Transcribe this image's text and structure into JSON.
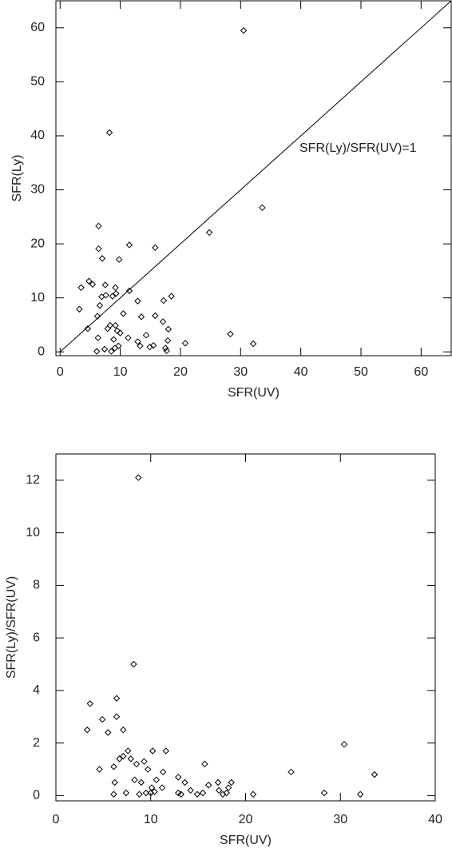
{
  "chart_data": [
    {
      "type": "scatter",
      "xlabel": "SFR(UV)",
      "ylabel": "SFR(Ly)",
      "annotation": "SFR(Ly)/SFR(UV)=1",
      "reference_line": true,
      "xlim": [
        -0.7,
        65
      ],
      "ylim": [
        -0.7,
        65
      ],
      "xticks": [
        0,
        10,
        20,
        30,
        40,
        50,
        60
      ],
      "yticks": [
        0,
        10,
        20,
        30,
        40,
        50,
        60
      ],
      "color": "#000000",
      "x": [
        30.5,
        8.2,
        33.6,
        24.8,
        6.4,
        11.5,
        15.8,
        6.4,
        7,
        9.8,
        4.8,
        3.5,
        5.4,
        7.5,
        9.2,
        11.5,
        6.9,
        7.6,
        8.7,
        9.3,
        3.2,
        6.6,
        12.9,
        17.2,
        18.5,
        6.2,
        8.3,
        7.9,
        4.6,
        9.2,
        10.5,
        13.5,
        15.8,
        17.1,
        9.5,
        10.0,
        11.3,
        14.3,
        18.0,
        6.3,
        8.9,
        12.9,
        13.3,
        14.9,
        15.5,
        17.5,
        17.9,
        20.8,
        28.3,
        32.1,
        6.1,
        7.4,
        8.5,
        9.1,
        9.7,
        17.7
      ],
      "values": [
        59.5,
        40.6,
        26.7,
        22.1,
        23.3,
        19.8,
        19.3,
        19.1,
        17.3,
        17.1,
        13.1,
        11.9,
        12.5,
        12.4,
        11.9,
        11.3,
        10.2,
        10.5,
        10.3,
        10.8,
        7.9,
        8.6,
        9.4,
        9.5,
        10.3,
        6.6,
        4.9,
        4.3,
        4.3,
        4.9,
        7.1,
        6.5,
        6.7,
        5.6,
        3.9,
        3.5,
        2.6,
        3.1,
        4.2,
        2.6,
        2.3,
        1.9,
        1.1,
        0.9,
        1.2,
        0.7,
        2.1,
        1.6,
        3.3,
        1.5,
        0.1,
        0.5,
        0.1,
        0.7,
        1.1,
        0.2
      ]
    },
    {
      "type": "scatter",
      "xlabel": "SFR(UV)",
      "ylabel": "SFR(Ly)/SFR(UV)",
      "xlim": [
        0,
        40
      ],
      "ylim": [
        -0.2,
        13
      ],
      "xticks": [
        0,
        10,
        20,
        30,
        40
      ],
      "yticks": [
        0,
        2,
        4,
        6,
        8,
        10,
        12
      ],
      "color": "#000000",
      "x": [
        8.7,
        8.2,
        6.4,
        3.6,
        3.3,
        4.9,
        6.4,
        5.5,
        7.1,
        6.1,
        6.7,
        7.1,
        7.6,
        7.9,
        8.5,
        9.3,
        9.7,
        10.2,
        11.6,
        12.9,
        13.6,
        15.7,
        11.3,
        4.6,
        6.2,
        8.3,
        9.0,
        10.6,
        10.1,
        11.2,
        9.5,
        8.8,
        7.4,
        6.1,
        10.0,
        10.4,
        12.9,
        13.2,
        14.2,
        14.9,
        15.5,
        16.1,
        17.1,
        17.2,
        17.6,
        18.0,
        18.2,
        18.5,
        20.8,
        24.8,
        28.3,
        30.4,
        32.1,
        33.6
      ],
      "values": [
        12.1,
        5.0,
        3.7,
        3.5,
        2.5,
        2.9,
        3.0,
        2.4,
        2.5,
        1.1,
        1.4,
        1.5,
        1.7,
        1.4,
        1.2,
        1.3,
        1.0,
        1.7,
        1.7,
        0.7,
        0.5,
        1.2,
        0.9,
        1.0,
        0.5,
        0.6,
        0.5,
        0.6,
        0.3,
        0.3,
        0.1,
        0.05,
        0.1,
        0.05,
        0.1,
        0.15,
        0.1,
        0.05,
        0.2,
        0.05,
        0.1,
        0.4,
        0.5,
        0.2,
        0.05,
        0.1,
        0.3,
        0.5,
        0.05,
        0.9,
        0.1,
        1.95,
        0.05,
        0.8
      ]
    }
  ]
}
